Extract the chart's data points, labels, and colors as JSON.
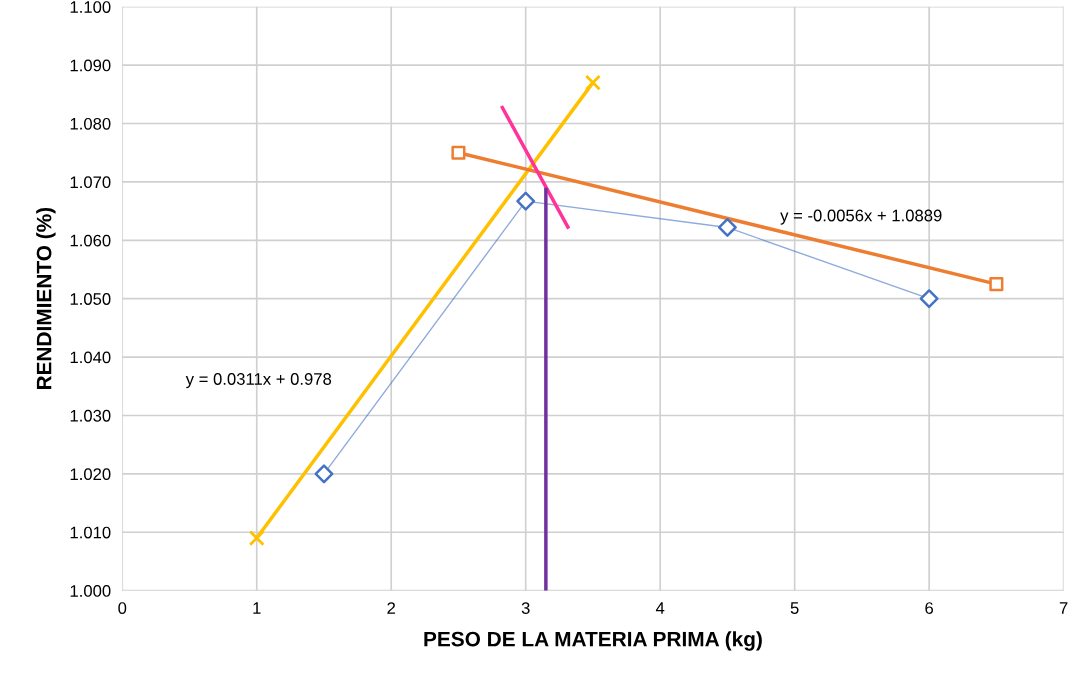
{
  "chart_data": {
    "type": "line",
    "xlabel": "PESO DE LA MATERIA PRIMA (kg)",
    "ylabel": "RENDIMIENTO (%)",
    "xlim": [
      0,
      7
    ],
    "xticks": [
      0,
      1,
      2,
      3,
      4,
      5,
      6,
      7
    ],
    "ylim": [
      1.0,
      1.1
    ],
    "yticks": [
      {
        "value": 1.0,
        "label": "1.000"
      },
      {
        "value": 1.01,
        "label": "1.010"
      },
      {
        "value": 1.02,
        "label": "1.020"
      },
      {
        "value": 1.03,
        "label": "1.030"
      },
      {
        "value": 1.04,
        "label": "1.040"
      },
      {
        "value": 1.05,
        "label": "1.050"
      },
      {
        "value": 1.06,
        "label": "1.060"
      },
      {
        "value": 1.07,
        "label": "1.070"
      },
      {
        "value": 1.08,
        "label": "1.080"
      },
      {
        "value": 1.09,
        "label": "1.090"
      },
      {
        "value": 1.1,
        "label": "1.100"
      }
    ],
    "grid": true,
    "series": [
      {
        "color": "#4472c4",
        "x": [
          1.5,
          3,
          4.5,
          6
        ],
        "values": [
          1.02,
          1.0667,
          1.0622,
          1.05
        ],
        "marker": "diamond"
      },
      {
        "color": "#ffc000",
        "x": [
          1,
          3.5
        ],
        "values": [
          1.009,
          1.087
        ],
        "marker": "cross"
      },
      {
        "color": "#ed7d31",
        "x": [
          2.5,
          6.5
        ],
        "values": [
          1.075,
          1.0525
        ],
        "marker": "square"
      },
      {
        "color": "#ff3399",
        "x": [
          2.82,
          3.32
        ],
        "values": [
          1.083,
          1.062
        ],
        "marker": "none"
      },
      {
        "color": "#7030a0",
        "x": [
          3.15,
          3.15
        ],
        "values": [
          1.0,
          1.069
        ],
        "marker": "none"
      }
    ],
    "annotations": [
      "y = -0.0056x + 1.0889",
      "y = 0.0311x + 0.978"
    ]
  }
}
